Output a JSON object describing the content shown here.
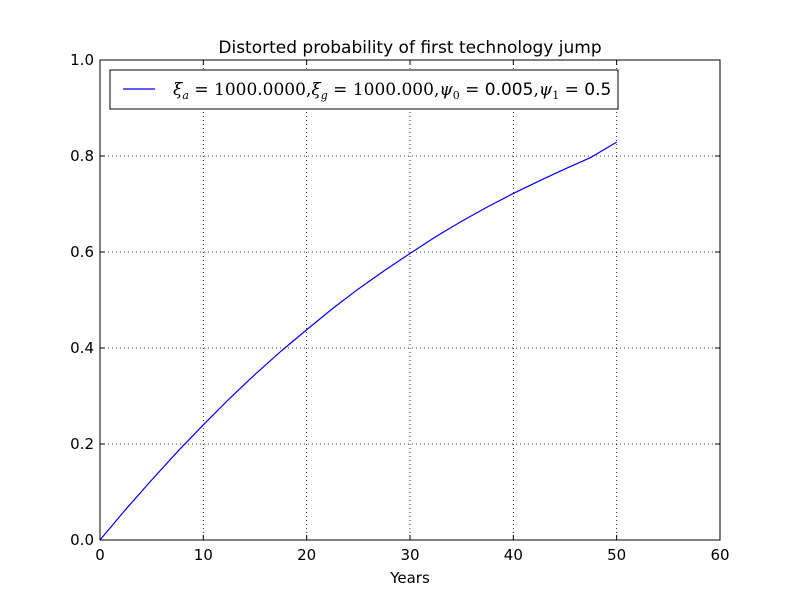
{
  "chart_data": {
    "type": "line",
    "title": "Distorted probability of first technology jump",
    "xlabel": "Years",
    "ylabel": "",
    "xlim": [
      0,
      60
    ],
    "ylim": [
      0.0,
      1.0
    ],
    "xticks": [
      0,
      10,
      20,
      30,
      40,
      50,
      60
    ],
    "xtick_labels": [
      "0",
      "10",
      "20",
      "30",
      "40",
      "50",
      "60"
    ],
    "yticks": [
      0.0,
      0.2,
      0.4,
      0.6,
      0.8,
      1.0
    ],
    "ytick_labels": [
      "0.0",
      "0.2",
      "0.4",
      "0.6",
      "0.8",
      "1.0"
    ],
    "grid": true,
    "legend_position": "top-left",
    "series": [
      {
        "name": "ξa=1000.0000,ξg=1000.000,ψ0=0.005,ψ1=0.5",
        "color": "#0000ff",
        "x": [
          0,
          2.5,
          5,
          7.5,
          10,
          12.5,
          15,
          17.5,
          20,
          22.5,
          25,
          27.5,
          30,
          32.5,
          35,
          37.5,
          40,
          42.5,
          45,
          47.5,
          50
        ],
        "y": [
          0.0,
          0.064,
          0.125,
          0.184,
          0.24,
          0.294,
          0.345,
          0.393,
          0.438,
          0.482,
          0.523,
          0.561,
          0.597,
          0.632,
          0.664,
          0.694,
          0.722,
          0.748,
          0.773,
          0.797,
          0.829
        ]
      }
    ]
  },
  "legend": {
    "xi_a_value": "1000.0000",
    "xi_g_value": "1000.000",
    "psi0_value": "0.005",
    "psi1_value": "0.5"
  }
}
